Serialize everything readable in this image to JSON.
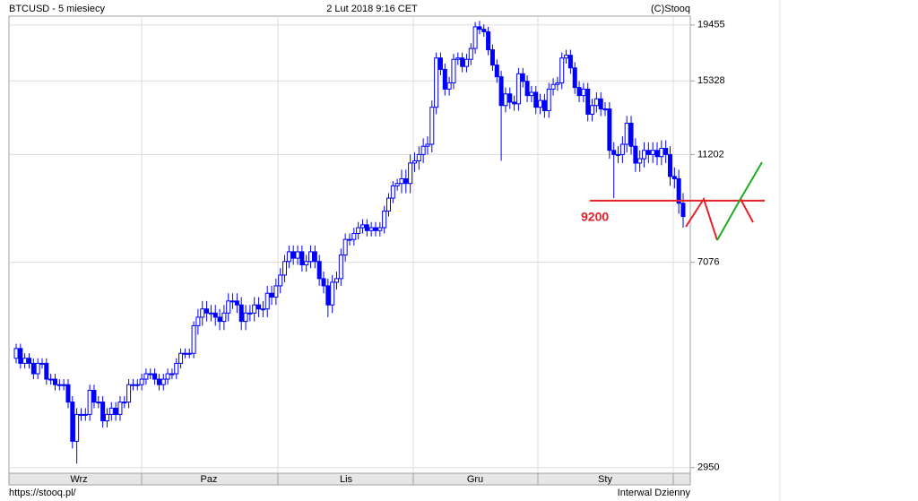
{
  "chart_data": {
    "type": "candlestick",
    "title": "BTCUSD - 5 miesiecy",
    "date": "2 Lut 2018 9:16 CET",
    "source": "(C)Stooq",
    "footer_left": "https://stooq.pl/",
    "footer_right": "Interwal Dzienny",
    "categories": [
      "Wrz",
      "Paz",
      "Lis",
      "Gru",
      "Sty"
    ],
    "color": "#0000ff",
    "log_scale": true,
    "grid": true,
    "ylim": [
      2880,
      20200
    ],
    "yticks": [
      2950,
      7076,
      11202,
      15328,
      19455
    ],
    "annotation": {
      "level": 9200,
      "color": "#e8202a"
    },
    "candles": {
      "open": [
        4700,
        4900,
        4600,
        4700,
        4600,
        4400,
        4600,
        4600,
        4300,
        4300,
        4200,
        4200,
        4200,
        3900,
        3300,
        3700,
        3700,
        3700,
        4100,
        3900,
        3900,
        3600,
        3700,
        3800,
        3700,
        3900,
        3900,
        4200,
        4200,
        4200,
        4300,
        4400,
        4400,
        4300,
        4200,
        4300,
        4400,
        4400,
        4600,
        4800,
        4800,
        4800,
        5400,
        5600,
        5800,
        5700,
        5700,
        5600,
        5500,
        5700,
        6000,
        6000,
        5900,
        5500,
        5700,
        5700,
        5900,
        5800,
        5800,
        6200,
        6100,
        6400,
        6700,
        7100,
        7400,
        7200,
        7400,
        7000,
        7100,
        7400,
        7100,
        6600,
        6400,
        5900,
        6500,
        6600,
        7300,
        7800,
        7800,
        8000,
        8200,
        8300,
        8100,
        8200,
        8100,
        8200,
        8800,
        9300,
        9800,
        9900,
        10100,
        9900,
        10800,
        10900,
        11200,
        11600,
        11700,
        13700,
        16900,
        16100,
        14800,
        15200,
        16800,
        16900,
        16300,
        16800,
        17600,
        19300,
        19100,
        18900,
        17500,
        16400,
        15600,
        13800,
        14500,
        14000,
        13900,
        15800,
        15300,
        14400,
        14600,
        13700,
        14100,
        13500,
        14800,
        15100,
        15200,
        16900,
        17100,
        16200,
        14900,
        14400,
        14800,
        13300,
        13800,
        14200,
        13600,
        13600,
        11400,
        11200,
        11200,
        11700,
        12800,
        11600,
        10800,
        11000,
        11400,
        11200,
        11400,
        11100,
        11500,
        11200,
        10200,
        10100,
        9100
      ],
      "high": [
        5000,
        5000,
        4800,
        4800,
        4700,
        4700,
        4700,
        4700,
        4400,
        4400,
        4300,
        4300,
        4300,
        4000,
        3800,
        3800,
        3800,
        4200,
        4200,
        4000,
        4000,
        3800,
        3900,
        3900,
        4000,
        4000,
        4300,
        4300,
        4300,
        4400,
        4500,
        4500,
        4500,
        4400,
        4400,
        4500,
        4500,
        4700,
        4900,
        4900,
        4900,
        5500,
        5800,
        6000,
        6000,
        5900,
        5900,
        5800,
        5900,
        6200,
        6200,
        6200,
        6100,
        5900,
        5900,
        6100,
        6100,
        6000,
        6400,
        6400,
        6600,
        6900,
        7300,
        7600,
        7600,
        7600,
        7600,
        7300,
        7600,
        7600,
        7300,
        6800,
        6600,
        6700,
        6800,
        7500,
        8000,
        8000,
        8200,
        8400,
        8500,
        8500,
        8400,
        8400,
        8400,
        9000,
        9500,
        10000,
        10100,
        10500,
        10500,
        11200,
        11300,
        11600,
        12000,
        12100,
        14100,
        17300,
        17300,
        16500,
        15600,
        17200,
        17300,
        17300,
        17200,
        18000,
        19700,
        19800,
        19500,
        19300,
        17900,
        16800,
        16000,
        14900,
        14900,
        14400,
        16200,
        16200,
        15700,
        15000,
        15000,
        14500,
        14500,
        15200,
        15500,
        15600,
        17300,
        17500,
        17500,
        16600,
        15300,
        15200,
        15200,
        14200,
        14600,
        14600,
        14000,
        14000,
        11800,
        11600,
        12100,
        13200,
        13200,
        12000,
        11400,
        11800,
        11800,
        11800,
        11800,
        11900,
        11900,
        11600,
        10600,
        10500,
        9500
      ],
      "low": [
        4600,
        4500,
        4500,
        4500,
        4300,
        4300,
        4500,
        4200,
        4200,
        4100,
        4100,
        4100,
        3800,
        3200,
        3000,
        3600,
        3600,
        3600,
        3800,
        3800,
        3500,
        3500,
        3600,
        3600,
        3600,
        3800,
        3800,
        4100,
        4100,
        4100,
        4200,
        4300,
        4200,
        4100,
        4100,
        4200,
        4300,
        4300,
        4500,
        4700,
        4700,
        4700,
        5200,
        5400,
        5500,
        5500,
        5400,
        5300,
        5300,
        5500,
        5800,
        5700,
        5300,
        5300,
        5500,
        5500,
        5600,
        5600,
        5600,
        5900,
        5900,
        6200,
        6500,
        6900,
        7000,
        7000,
        6800,
        6800,
        6900,
        6900,
        6400,
        6200,
        5600,
        5700,
        6300,
        6400,
        7100,
        7600,
        7600,
        7800,
        8000,
        7900,
        7900,
        7900,
        7900,
        8000,
        8600,
        9100,
        9600,
        9500,
        9500,
        9500,
        10400,
        10500,
        10800,
        11200,
        11300,
        13300,
        15700,
        14400,
        14400,
        14800,
        16400,
        15900,
        15900,
        16400,
        17200,
        18700,
        18500,
        17100,
        16000,
        15200,
        10900,
        13400,
        13600,
        13500,
        13500,
        14900,
        14000,
        14000,
        13300,
        13300,
        13100,
        13100,
        14400,
        14700,
        14800,
        16500,
        15800,
        14500,
        14000,
        14000,
        12900,
        12900,
        13400,
        13200,
        13200,
        11000,
        9300,
        10800,
        10800,
        11300,
        11200,
        10400,
        10400,
        10600,
        10800,
        10800,
        10700,
        10700,
        10800,
        9800,
        9700,
        8700,
        8200
      ],
      "close": [
        4900,
        4600,
        4700,
        4600,
        4400,
        4600,
        4600,
        4300,
        4300,
        4200,
        4200,
        4200,
        3900,
        3300,
        3700,
        3700,
        3700,
        4100,
        3900,
        3900,
        3600,
        3700,
        3800,
        3700,
        3900,
        3900,
        4200,
        4200,
        4200,
        4300,
        4400,
        4400,
        4300,
        4200,
        4300,
        4400,
        4400,
        4600,
        4800,
        4800,
        4800,
        5400,
        5600,
        5800,
        5700,
        5700,
        5600,
        5500,
        5700,
        6000,
        6000,
        5900,
        5500,
        5700,
        5700,
        5900,
        5800,
        5800,
        6200,
        6100,
        6400,
        6700,
        7100,
        7400,
        7200,
        7400,
        7000,
        7100,
        7400,
        7100,
        6600,
        6400,
        5900,
        6500,
        6600,
        7300,
        7800,
        7800,
        8000,
        8200,
        8300,
        8100,
        8200,
        8100,
        8200,
        8800,
        9300,
        9800,
        9900,
        10100,
        9900,
        10800,
        10900,
        11200,
        11600,
        11700,
        13700,
        16900,
        16100,
        14800,
        15200,
        16800,
        16900,
        16300,
        16800,
        17600,
        19300,
        19100,
        18900,
        17500,
        16400,
        15600,
        13800,
        14500,
        14000,
        13900,
        15800,
        15300,
        14400,
        14600,
        13700,
        14100,
        13500,
        14800,
        15100,
        15200,
        16900,
        17100,
        16200,
        14900,
        14400,
        14800,
        13300,
        13800,
        14200,
        13600,
        13600,
        11400,
        11200,
        11200,
        11700,
        12800,
        11600,
        10800,
        11000,
        11400,
        11200,
        11400,
        11100,
        11500,
        11200,
        10200,
        10100,
        9100,
        8600
      ]
    }
  }
}
